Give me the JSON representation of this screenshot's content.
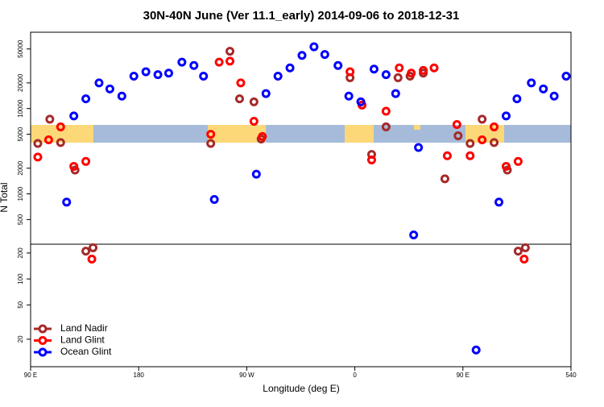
{
  "chart_data": {
    "type": "scatter",
    "title": "30N-40N June (Ver 11.1_early)   2014-09-06 to 2018-12-31",
    "x_label": "Longitude (deg E)",
    "y_label": "N Total",
    "log_y": true,
    "legend": "bottom-left",
    "xlim": [
      90,
      540
    ],
    "xticks": [
      {
        "value": 90,
        "label": "90 E"
      },
      180,
      {
        "value": 270,
        "label": "90 W"
      },
      {
        "value": 360,
        "label": "0"
      },
      {
        "value": 450,
        "label": "90 E"
      },
      540
    ],
    "panels": [
      {
        "ylim": [
          257,
          78500
        ],
        "yticks": [
          500,
          1000,
          2000,
          5000,
          10000,
          20000,
          50000
        ]
      },
      {
        "ylim": [
          9.6,
          253
        ],
        "yticks": [
          20,
          50,
          100,
          200
        ]
      }
    ],
    "series": [
      {
        "name": "Land Nadir",
        "color": "#a52a2a",
        "x": [
          96,
          106,
          115,
          127,
          136,
          142,
          240,
          256,
          264,
          276,
          282,
          356,
          366,
          374,
          386,
          396,
          406,
          417,
          435,
          446,
          456,
          466,
          476,
          487,
          496,
          502
        ],
        "values": [
          3900,
          7500,
          4000,
          1900,
          210,
          230,
          3900,
          47000,
          13000,
          12000,
          4400,
          23000,
          11000,
          2900,
          6100,
          23000,
          24000,
          26000,
          1500,
          4800,
          3900,
          7500,
          4000,
          1900,
          210,
          230
        ]
      },
      {
        "name": "Land Glint",
        "color": "#ff0000",
        "x": [
          96,
          105,
          115,
          126,
          136,
          141,
          240,
          247,
          256,
          265,
          276,
          283,
          356,
          366,
          374,
          386,
          397,
          407,
          417,
          426,
          437,
          445,
          456,
          466,
          476,
          486,
          496,
          501
        ],
        "values": [
          2700,
          4300,
          6100,
          2100,
          2400,
          170,
          5000,
          35000,
          36000,
          20000,
          7100,
          4700,
          27000,
          11000,
          2500,
          9300,
          30000,
          26000,
          28000,
          30000,
          2800,
          6500,
          2800,
          4300,
          6100,
          2100,
          2400,
          170
        ]
      },
      {
        "name": "Ocean Glint",
        "color": "#0000ff",
        "x": [
          120,
          126,
          136,
          147,
          156,
          166,
          176,
          186,
          196,
          205,
          216,
          226,
          234,
          243,
          278,
          286,
          296,
          306,
          316,
          326,
          335,
          346,
          355,
          365,
          376,
          386,
          394,
          409,
          413,
          461,
          480,
          486,
          495,
          507,
          517,
          526,
          536
        ],
        "values": [
          800,
          8200,
          13000,
          20000,
          17000,
          14000,
          24000,
          27000,
          25000,
          26000,
          35000,
          32000,
          24000,
          860,
          1700,
          15000,
          24000,
          30000,
          42000,
          53000,
          43000,
          32000,
          14000,
          12000,
          29000,
          25000,
          15000,
          330,
          3500,
          15,
          800,
          8200,
          13000,
          20000,
          17000,
          14000,
          24000
        ]
      }
    ]
  }
}
